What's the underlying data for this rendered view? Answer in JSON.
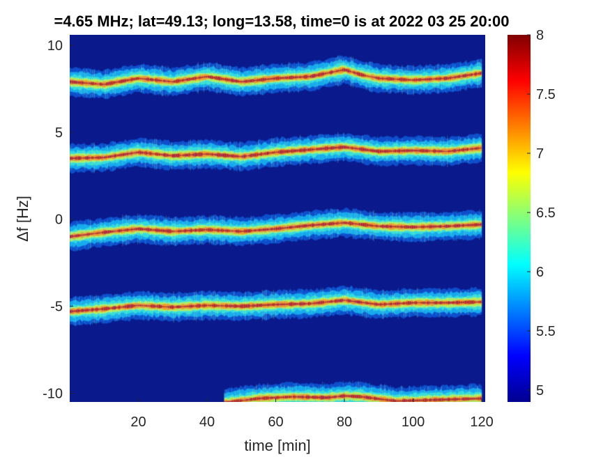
{
  "chart_data": {
    "type": "heatmap",
    "title": "=4.65 MHz;  lat=49.13; long=13.58, time=0 is at 2022 03 25 20:00",
    "xlabel": "time [min]",
    "ylabel": "Δf [Hz]",
    "xlim": [
      0,
      121
    ],
    "ylim": [
      -10.5,
      10.6
    ],
    "x_ticks": [
      "20",
      "40",
      "60",
      "80",
      "100",
      "120"
    ],
    "y_ticks": [
      "10",
      "5",
      "0",
      "-5",
      "-10"
    ],
    "colorbar": {
      "colormap": "jet",
      "range": [
        4.9,
        8
      ],
      "ticks": [
        "5",
        "5.5",
        "6",
        "6.5",
        "7",
        "7.5",
        "8"
      ]
    },
    "background_color": "#0a1a8c",
    "bands": [
      {
        "points": [
          [
            0,
            7.9
          ],
          [
            10,
            7.75
          ],
          [
            20,
            8.1
          ],
          [
            30,
            7.9
          ],
          [
            40,
            8.2
          ],
          [
            50,
            7.9
          ],
          [
            60,
            8.1
          ],
          [
            70,
            8.2
          ],
          [
            80,
            8.6
          ],
          [
            85,
            8.3
          ],
          [
            90,
            8.1
          ],
          [
            100,
            8.0
          ],
          [
            110,
            8.1
          ],
          [
            120,
            8.4
          ]
        ]
      },
      {
        "points": [
          [
            0,
            3.5
          ],
          [
            10,
            3.55
          ],
          [
            20,
            3.85
          ],
          [
            30,
            3.65
          ],
          [
            40,
            3.75
          ],
          [
            50,
            3.6
          ],
          [
            60,
            3.85
          ],
          [
            70,
            4.0
          ],
          [
            80,
            4.15
          ],
          [
            90,
            3.9
          ],
          [
            100,
            3.95
          ],
          [
            110,
            3.9
          ],
          [
            120,
            4.1
          ]
        ]
      },
      {
        "points": [
          [
            0,
            -1.0
          ],
          [
            10,
            -0.75
          ],
          [
            20,
            -0.55
          ],
          [
            30,
            -0.7
          ],
          [
            40,
            -0.6
          ],
          [
            50,
            -0.7
          ],
          [
            60,
            -0.55
          ],
          [
            70,
            -0.35
          ],
          [
            80,
            -0.2
          ],
          [
            90,
            -0.4
          ],
          [
            100,
            -0.45
          ],
          [
            110,
            -0.4
          ],
          [
            120,
            -0.3
          ]
        ]
      },
      {
        "points": [
          [
            0,
            -5.3
          ],
          [
            10,
            -5.15
          ],
          [
            20,
            -4.95
          ],
          [
            30,
            -5.05
          ],
          [
            40,
            -4.95
          ],
          [
            50,
            -5.0
          ],
          [
            60,
            -4.9
          ],
          [
            70,
            -4.85
          ],
          [
            80,
            -4.65
          ],
          [
            90,
            -4.9
          ],
          [
            100,
            -4.8
          ],
          [
            110,
            -4.8
          ],
          [
            120,
            -4.75
          ]
        ]
      },
      {
        "points": [
          [
            45,
            -10.55
          ],
          [
            55,
            -10.3
          ],
          [
            65,
            -10.2
          ],
          [
            75,
            -10.25
          ],
          [
            80,
            -10.15
          ],
          [
            85,
            -10.2
          ],
          [
            95,
            -10.45
          ],
          [
            120,
            -10.3
          ]
        ]
      }
    ]
  }
}
